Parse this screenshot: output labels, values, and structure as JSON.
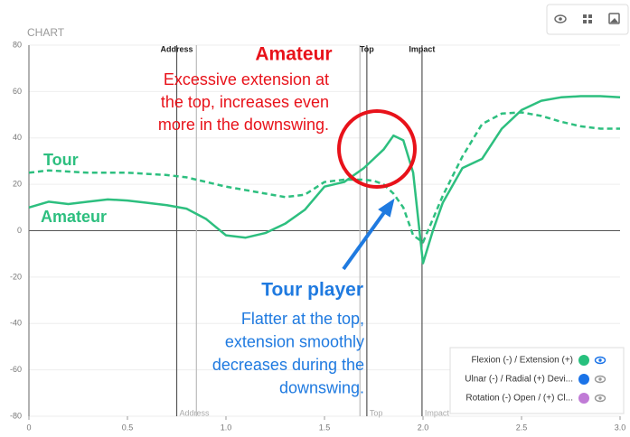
{
  "chart_data": {
    "type": "line",
    "header": "CHART",
    "x": [
      0,
      0.1,
      0.2,
      0.3,
      0.4,
      0.5,
      0.6,
      0.7,
      0.8,
      0.9,
      1.0,
      1.1,
      1.2,
      1.3,
      1.4,
      1.5,
      1.6,
      1.7,
      1.75,
      1.8,
      1.85,
      1.9,
      1.95,
      2.0,
      2.05,
      2.1,
      2.2,
      2.3,
      2.4,
      2.5,
      2.6,
      2.7,
      2.8,
      2.9,
      3.0
    ],
    "series": [
      {
        "name": "Amateur",
        "color": "#2dbf7f",
        "dashed": false,
        "values": [
          10,
          12.5,
          11.5,
          12.5,
          13.5,
          13,
          12,
          11,
          9.5,
          5,
          -2,
          -3,
          -1,
          3,
          9,
          19,
          21,
          27,
          31,
          35,
          41,
          39,
          25,
          -14,
          0,
          12,
          27,
          31,
          44,
          52,
          56,
          57.5,
          58,
          58,
          57.5
        ]
      },
      {
        "name": "Tour",
        "color": "#2dbf7f",
        "dashed": true,
        "values": [
          25,
          26,
          25.5,
          25,
          25,
          25,
          24.5,
          24,
          23,
          21,
          19,
          17.5,
          16,
          14.5,
          15.5,
          21,
          22,
          22,
          21.5,
          20,
          16,
          10,
          -2,
          -5,
          5,
          15,
          32,
          46,
          50.5,
          51,
          49.5,
          47,
          45,
          44,
          44
        ]
      }
    ],
    "xlim": [
      0,
      3
    ],
    "ylim": [
      -80,
      80
    ],
    "xticks": [
      0,
      0.5,
      {
        "value": 1,
        "label": "1.0"
      },
      1.5,
      {
        "value": 2,
        "label": "2.0"
      },
      2.5,
      {
        "value": 3,
        "label": "3.0"
      }
    ],
    "yticks": [
      -80,
      -60,
      -40,
      -20,
      0,
      20,
      40,
      60,
      80
    ],
    "markers": [
      {
        "label": "Address",
        "x": 0.75
      },
      {
        "x": 0.85
      },
      {
        "x": 1.68
      },
      {
        "label": "Top",
        "x": 1.715
      },
      {
        "label": "Impact",
        "x": 1.995
      }
    ],
    "legend": [
      {
        "name": "Flexion (-) / Extension (+)",
        "color": "#27c07d"
      },
      {
        "name": "Ulnar (-) / Radial (+) Devi...",
        "color": "#1a73e8"
      },
      {
        "name": "Rotation (-) Open / (+) Cl...",
        "color": "#c07bd6"
      }
    ],
    "annotations": {
      "amateur_title": "Amateur",
      "amateur_text": [
        "Excessive extension at",
        "the top, increases even",
        "more in the downswing."
      ],
      "tour_title": "Tour player",
      "tour_text": [
        "Flatter at the top,",
        "extension smoothly",
        "decreases during the",
        "downswing."
      ]
    }
  }
}
